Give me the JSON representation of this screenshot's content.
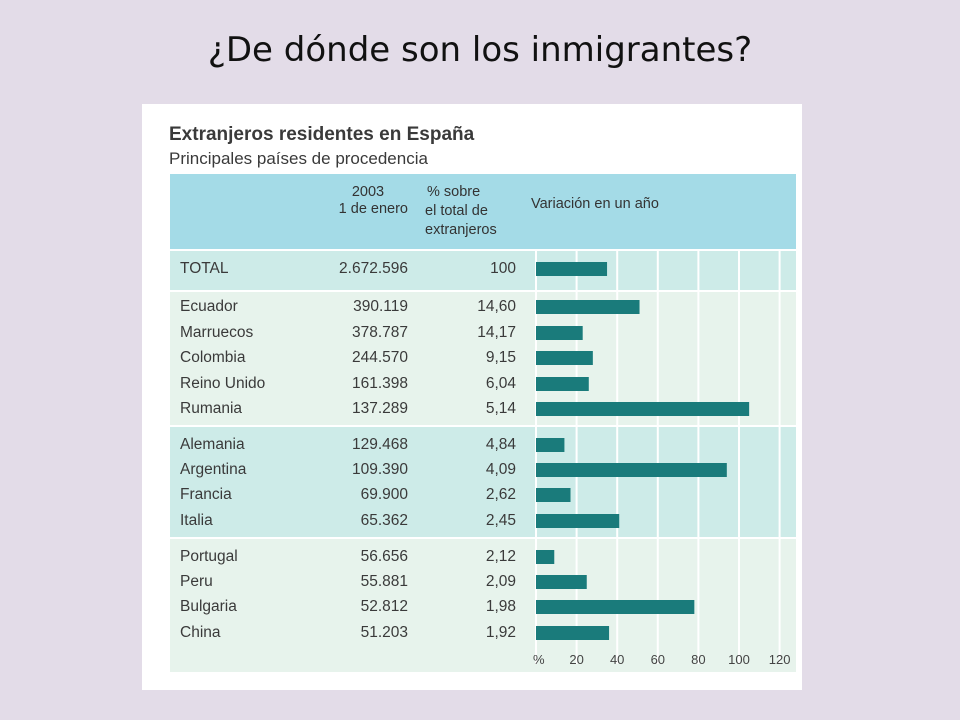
{
  "slide": {
    "title": "¿De dónde son los inmigrantes?"
  },
  "chart_data": {
    "type": "table",
    "title": "Extranjeros residentes en España",
    "subtitle": "Principales países de procedencia",
    "columns": [
      "2003 1 de enero",
      "% sobre el total de extranjeros",
      "Variación en un año"
    ],
    "header": {
      "col1_line1": "2003",
      "col1_line2": "1 de enero",
      "col2_line1": "% sobre",
      "col2_line2": "el total de",
      "col2_line3": "extranjeros",
      "col3": "Variación en un año"
    },
    "rows": [
      {
        "country": "TOTAL",
        "residents": "2.672.596",
        "percent": "100",
        "variation": 35
      },
      {
        "country": "Ecuador",
        "residents": "390.119",
        "percent": "14,60",
        "variation": 51
      },
      {
        "country": "Marruecos",
        "residents": "378.787",
        "percent": "14,17",
        "variation": 23
      },
      {
        "country": "Colombia",
        "residents": "244.570",
        "percent": "9,15",
        "variation": 28
      },
      {
        "country": "Reino Unido",
        "residents": "161.398",
        "percent": "6,04",
        "variation": 26
      },
      {
        "country": "Rumania",
        "residents": "137.289",
        "percent": "5,14",
        "variation": 105
      },
      {
        "country": "Alemania",
        "residents": "129.468",
        "percent": "4,84",
        "variation": 14
      },
      {
        "country": "Argentina",
        "residents": "109.390",
        "percent": "4,09",
        "variation": 94
      },
      {
        "country": "Francia",
        "residents": "69.900",
        "percent": "2,62",
        "variation": 17
      },
      {
        "country": "Italia",
        "residents": "65.362",
        "percent": "2,45",
        "variation": 41
      },
      {
        "country": "Portugal",
        "residents": "56.656",
        "percent": "2,12",
        "variation": 9
      },
      {
        "country": "Peru",
        "residents": "55.881",
        "percent": "2,09",
        "variation": 25
      },
      {
        "country": "Bulgaria",
        "residents": "52.812",
        "percent": "1,98",
        "variation": 78
      },
      {
        "country": "China",
        "residents": "51.203",
        "percent": "1,92",
        "variation": 36
      }
    ],
    "x_axis": {
      "unit_label": "%",
      "ticks": [
        "20",
        "40",
        "60",
        "80",
        "100",
        "120"
      ],
      "range": [
        0,
        120
      ]
    },
    "grid": true,
    "colors": {
      "bar": "#1a7b7b",
      "header": "#a4dbe7",
      "band_dark": "#cdebe8",
      "band_light": "#e7f3ec"
    }
  }
}
